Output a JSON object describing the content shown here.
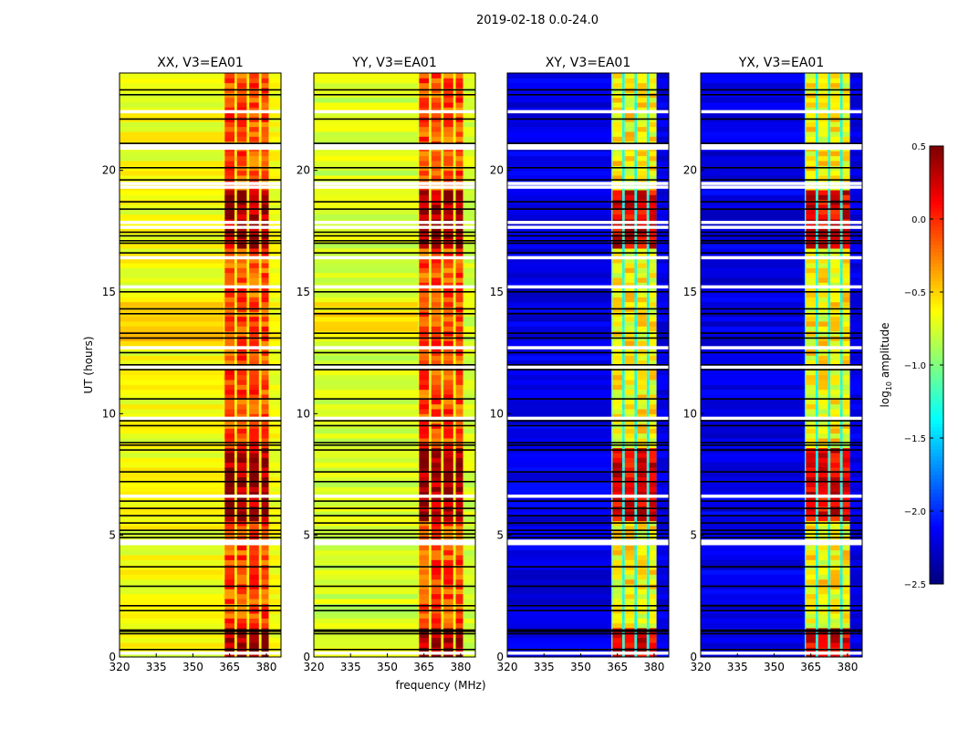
{
  "chart_data": {
    "type": "heatmap",
    "title": "2019-02-18 0.0-24.0",
    "xlabel": "frequency (MHz)",
    "ylabel": "UT (hours)",
    "xlim": [
      320,
      386
    ],
    "ylim": [
      0,
      24
    ],
    "xticks": [
      "320",
      "335",
      "350",
      "365",
      "380"
    ],
    "xtick_values": [
      320,
      335,
      350,
      365,
      380
    ],
    "yticks": [
      "0",
      "5",
      "10",
      "15",
      "20"
    ],
    "ytick_values": [
      0,
      5,
      10,
      15,
      20
    ],
    "colorbar": {
      "label": "log10 amplitude",
      "label_main": "log",
      "label_sub": "10",
      "label_rest": " amplitude",
      "range": [
        -2.5,
        0.5
      ],
      "ticks": [
        "0.5",
        "0.0",
        "−0.5",
        "−1.0",
        "−1.5",
        "−2.0",
        "−2.5"
      ],
      "tick_values": [
        0.5,
        0.0,
        -0.5,
        -1.0,
        -1.5,
        -2.0,
        -2.5
      ],
      "colormap": "jet"
    },
    "rfi_channel_blocks_mhz": [
      [
        363,
        367
      ],
      [
        368,
        372
      ],
      [
        373,
        377
      ],
      [
        378,
        381
      ]
    ],
    "flagged_hours_white": [
      0.15,
      4.65,
      4.75,
      6.6,
      9.8,
      11.9,
      12.7,
      15.2,
      16.4,
      17.65,
      17.85,
      19.3,
      19.45,
      20.9,
      21.0,
      22.4
    ],
    "black_line_hours": [
      0.3,
      0.95,
      1.05,
      1.1,
      1.9,
      2.1,
      2.9,
      3.7,
      4.9,
      5.05,
      5.2,
      5.5,
      5.8,
      6.1,
      6.4,
      7.2,
      7.6,
      8.5,
      8.7,
      8.8,
      9.5,
      9.7,
      10.6,
      11.8,
      12.0,
      12.5,
      13.1,
      13.3,
      14.3,
      14.1,
      15.0,
      16.6,
      17.0,
      17.1,
      17.3,
      17.45,
      18.4,
      18.7,
      19.6,
      20.1,
      21.1,
      22.1,
      23.1,
      23.3
    ],
    "panels": [
      {
        "title": "XX, V3=EA01",
        "low_band_log10": -0.65,
        "rfi_band_log10": -0.1,
        "rfi_strong_log10": 0.4,
        "gap_log10": -0.6
      },
      {
        "title": "YY, V3=EA01",
        "low_band_log10": -0.75,
        "rfi_band_log10": -0.1,
        "rfi_strong_log10": 0.4,
        "gap_log10": -0.7
      },
      {
        "title": "XY, V3=EA01",
        "low_band_log10": -2.2,
        "rfi_band_log10": -0.6,
        "rfi_strong_log10": 0.2,
        "gap_log10": -1.3
      },
      {
        "title": "YX, V3=EA01",
        "low_band_log10": -2.2,
        "rfi_band_log10": -0.6,
        "rfi_strong_log10": 0.2,
        "gap_log10": -1.3
      }
    ]
  }
}
